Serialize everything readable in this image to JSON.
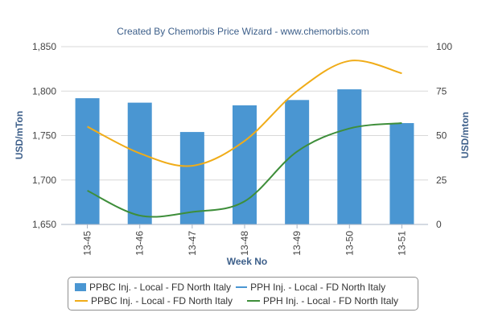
{
  "chart_data": {
    "type": "bar",
    "title": "Created By Chemorbis Price Wizard - www.chemorbis.com",
    "xlabel": "Week No",
    "ylabel_left": "USD/mTon",
    "ylabel_right": "USD/mton",
    "categories": [
      "13-45",
      "13-46",
      "13-47",
      "13-48",
      "13-49",
      "13-50",
      "13-51"
    ],
    "ylim_left": [
      1650,
      1850
    ],
    "yticks_left": [
      1650,
      1700,
      1750,
      1800,
      1850
    ],
    "ytick_labels_left": [
      "1,650",
      "1,700",
      "1,750",
      "1,800",
      "1,850"
    ],
    "ylim_right": [
      0,
      100
    ],
    "yticks_right": [
      0,
      25,
      50,
      75,
      100
    ],
    "ytick_labels_right": [
      "0",
      "25",
      "50",
      "75",
      "100"
    ],
    "grid": true,
    "legend_position": "bottom",
    "series": [
      {
        "name": "PPBC Inj. - Local - FD North Italy",
        "type": "bar",
        "axis": "left",
        "color": "#4a96d2",
        "values": [
          1792,
          1787,
          1754,
          1784,
          1790,
          1802,
          1764
        ]
      },
      {
        "name": "PPBC Inj. - Local - FD North Italy",
        "type": "line",
        "axis": "right",
        "color": "#f0ac18",
        "values": [
          55,
          40,
          33,
          47,
          75,
          92,
          85
        ]
      },
      {
        "name": "PPH Inj. - Local - FD North Italy",
        "type": "line",
        "axis": "right",
        "color": "#3e8e3a",
        "values": [
          19,
          5,
          7,
          13,
          41,
          54,
          57
        ]
      }
    ],
    "legend_bar_secondary": "PPH Inj. - Local - FD North Italy"
  }
}
